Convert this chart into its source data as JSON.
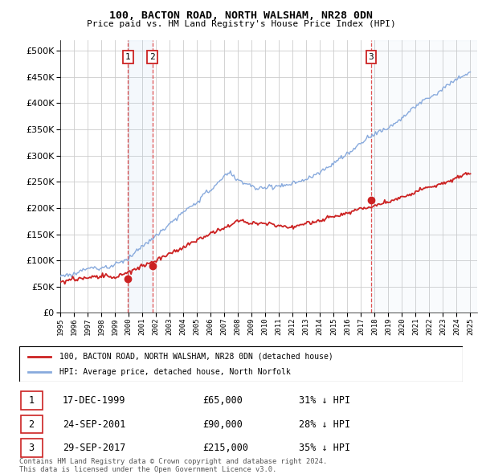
{
  "title1": "100, BACTON ROAD, NORTH WALSHAM, NR28 0DN",
  "title2": "Price paid vs. HM Land Registry's House Price Index (HPI)",
  "ylim": [
    0,
    520000
  ],
  "yticks": [
    0,
    50000,
    100000,
    150000,
    200000,
    250000,
    300000,
    350000,
    400000,
    450000,
    500000
  ],
  "xlim_start": 1995.0,
  "xlim_end": 2025.5,
  "background_color": "#ffffff",
  "grid_color": "#cccccc",
  "hpi_color": "#88aadd",
  "price_color": "#cc2222",
  "vline_color": "#dd3333",
  "sales": [
    {
      "date_num": 1999.96,
      "price": 65000,
      "label": "1"
    },
    {
      "date_num": 2001.73,
      "price": 90000,
      "label": "2"
    },
    {
      "date_num": 2017.74,
      "price": 215000,
      "label": "3"
    }
  ],
  "legend_property_label": "100, BACTON ROAD, NORTH WALSHAM, NR28 0DN (detached house)",
  "legend_hpi_label": "HPI: Average price, detached house, North Norfolk",
  "table_entries": [
    {
      "num": "1",
      "date": "17-DEC-1999",
      "price": "£65,000",
      "pct": "31% ↓ HPI"
    },
    {
      "num": "2",
      "date": "24-SEP-2001",
      "price": "£90,000",
      "pct": "28% ↓ HPI"
    },
    {
      "num": "3",
      "date": "29-SEP-2017",
      "price": "£215,000",
      "pct": "35% ↓ HPI"
    }
  ],
  "footnote1": "Contains HM Land Registry data © Crown copyright and database right 2024.",
  "footnote2": "This data is licensed under the Open Government Licence v3.0."
}
